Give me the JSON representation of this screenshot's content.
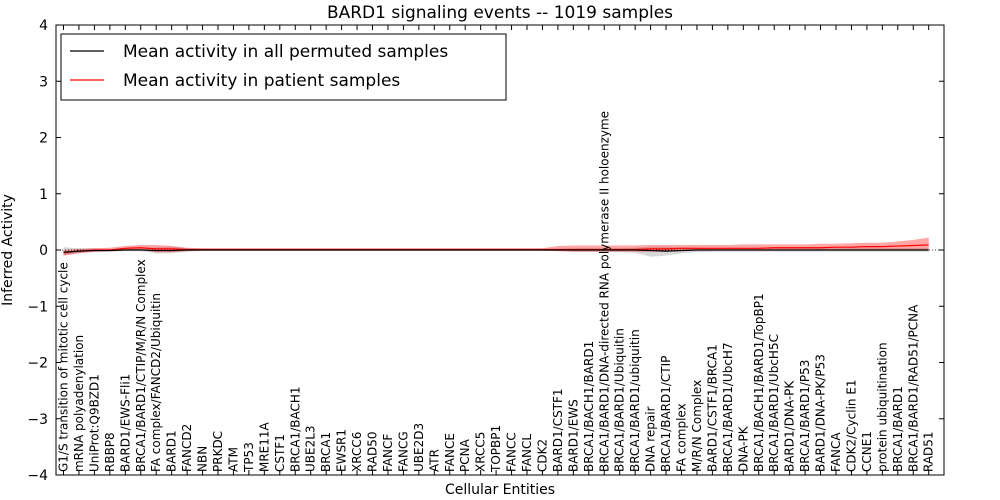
{
  "chart_data": {
    "type": "line",
    "title": "BARD1 signaling events -- 1019 samples",
    "xlabel": "Cellular Entities",
    "ylabel": "Inferred Activity",
    "ylim": [
      -4,
      4
    ],
    "yticks": [
      -4,
      -3,
      -2,
      -1,
      0,
      1,
      2,
      3,
      4
    ],
    "ytick_labels": [
      "−4",
      "−3",
      "−2",
      "−1",
      "0",
      "1",
      "2",
      "3",
      "4"
    ],
    "grid": false,
    "legend_position": "upper-left",
    "categories": [
      "G1/S transition of mitotic cell cycle",
      "mRNA polyadenylation",
      "UniProt:Q9BZD1",
      "RBBP8",
      "BARD1/EWS-Fli1",
      "BRCA1/BARD1/CTIP/M/R/N Complex",
      "FA complex/FANCD2/Ubiquitin",
      "BARD1",
      "FANCD2",
      "NBN",
      "PRKDC",
      "ATM",
      "TP53",
      "MRE11A",
      "CSTF1",
      "BRCA1/BACH1",
      "UBE2L3",
      "BRCA1",
      "EWSR1",
      "XRCC6",
      "RAD50",
      "FANCF",
      "FANCG",
      "UBE2D3",
      "ATR",
      "FANCE",
      "PCNA",
      "XRCC5",
      "TOPBP1",
      "FANCC",
      "FANCL",
      "CDK2",
      "BARD1/CSTF1",
      "BARD1/EWS",
      "BRCA1/BACH1/BARD1",
      "BRCA1/BARD1/DNA-directed RNA polymerase II holoenzyme",
      "BRCA1/BARD1/Ubiquitin",
      "BRCA1/BARD1/ubiquitin",
      "DNA repair",
      "BRCA1/BARD1/CTIP",
      "FA complex",
      "M/R/N Complex",
      "BARD1/CSTF1/BRCA1",
      "BRCA1/BARD1/UbcH7",
      "DNA-PK",
      "BRCA1/BACH1/BARD1/TopBP1",
      "BRCA1/BARD1/UbcH5C",
      "BARD1/DNA-PK",
      "BRCA1/BARD1/P53",
      "BARD1/DNA-PK/P53",
      "FANCA",
      "CDK2/Cyclin E1",
      "CCNE1",
      "protein ubiquitination",
      "BRCA1/BARD1",
      "BRCA1/BARD1/RAD51/PCNA",
      "RAD51"
    ],
    "series": [
      {
        "name": "Mean activity in all permuted samples",
        "color": "#000000",
        "values": [
          -0.04,
          -0.02,
          -0.01,
          -0.01,
          0.0,
          0.0,
          -0.01,
          -0.01,
          0.0,
          0.0,
          0.0,
          0.0,
          0.0,
          0.0,
          0.0,
          0.0,
          0.0,
          0.0,
          0.0,
          0.0,
          0.0,
          0.0,
          0.0,
          0.0,
          0.0,
          0.0,
          0.0,
          0.0,
          0.0,
          0.0,
          0.0,
          0.0,
          0.0,
          0.0,
          0.0,
          0.0,
          0.0,
          0.0,
          -0.01,
          -0.02,
          -0.01,
          0.0,
          0.0,
          0.0,
          0.0,
          0.0,
          0.0,
          0.0,
          0.0,
          0.0,
          0.0,
          0.0,
          0.0,
          0.0,
          0.0,
          0.0,
          0.0
        ],
        "band_low": [
          -0.1,
          -0.05,
          -0.04,
          -0.03,
          -0.02,
          -0.02,
          -0.06,
          -0.06,
          -0.03,
          -0.02,
          -0.02,
          -0.02,
          -0.02,
          -0.02,
          -0.02,
          -0.02,
          -0.02,
          -0.02,
          -0.02,
          -0.02,
          -0.02,
          -0.02,
          -0.02,
          -0.02,
          -0.02,
          -0.02,
          -0.02,
          -0.02,
          -0.02,
          -0.02,
          -0.02,
          -0.02,
          -0.02,
          -0.03,
          -0.03,
          -0.03,
          -0.04,
          -0.05,
          -0.12,
          -0.1,
          -0.06,
          -0.04,
          -0.03,
          -0.03,
          -0.03,
          -0.03,
          -0.03,
          -0.03,
          -0.03,
          -0.03,
          -0.03,
          -0.03,
          -0.03,
          -0.03,
          -0.03,
          -0.03,
          -0.03
        ],
        "band_high": [
          0.05,
          0.03,
          0.03,
          0.02,
          0.02,
          0.02,
          0.05,
          0.06,
          0.03,
          0.02,
          0.02,
          0.02,
          0.02,
          0.02,
          0.02,
          0.02,
          0.02,
          0.02,
          0.02,
          0.02,
          0.02,
          0.02,
          0.02,
          0.02,
          0.02,
          0.02,
          0.02,
          0.02,
          0.02,
          0.02,
          0.02,
          0.02,
          0.02,
          0.03,
          0.03,
          0.03,
          0.03,
          0.04,
          0.06,
          0.06,
          0.05,
          0.04,
          0.03,
          0.03,
          0.03,
          0.03,
          0.03,
          0.03,
          0.03,
          0.03,
          0.03,
          0.03,
          0.03,
          0.03,
          0.03,
          0.03,
          0.03
        ]
      },
      {
        "name": "Mean activity in patient samples",
        "color": "#ff0000",
        "values": [
          -0.05,
          -0.02,
          0.0,
          0.0,
          0.03,
          0.04,
          0.02,
          0.02,
          0.01,
          0.01,
          0.01,
          0.01,
          0.01,
          0.01,
          0.01,
          0.01,
          0.01,
          0.01,
          0.01,
          0.01,
          0.01,
          0.01,
          0.01,
          0.01,
          0.01,
          0.01,
          0.01,
          0.01,
          0.01,
          0.01,
          0.01,
          0.01,
          0.01,
          0.01,
          0.01,
          0.01,
          0.01,
          0.01,
          0.02,
          0.02,
          0.03,
          0.03,
          0.03,
          0.03,
          0.03,
          0.03,
          0.04,
          0.04,
          0.04,
          0.04,
          0.05,
          0.05,
          0.06,
          0.06,
          0.07,
          0.08,
          0.09
        ],
        "band_low": [
          -0.1,
          -0.06,
          -0.03,
          -0.02,
          0.0,
          0.0,
          -0.04,
          -0.04,
          -0.02,
          -0.01,
          -0.01,
          -0.01,
          -0.01,
          -0.01,
          -0.01,
          -0.01,
          -0.01,
          -0.01,
          -0.01,
          -0.01,
          -0.01,
          -0.01,
          -0.01,
          -0.01,
          -0.01,
          -0.01,
          -0.01,
          -0.01,
          -0.01,
          -0.01,
          -0.01,
          -0.01,
          -0.02,
          -0.03,
          -0.03,
          -0.03,
          -0.03,
          -0.03,
          -0.03,
          -0.03,
          -0.02,
          -0.01,
          -0.01,
          -0.01,
          -0.01,
          -0.01,
          -0.01,
          -0.01,
          -0.01,
          -0.01,
          0.0,
          0.0,
          0.0,
          0.0,
          0.0,
          0.0,
          0.0
        ],
        "band_high": [
          0.0,
          0.02,
          0.03,
          0.04,
          0.07,
          0.09,
          0.09,
          0.07,
          0.04,
          0.03,
          0.03,
          0.03,
          0.03,
          0.03,
          0.03,
          0.03,
          0.03,
          0.03,
          0.03,
          0.03,
          0.03,
          0.03,
          0.03,
          0.03,
          0.03,
          0.03,
          0.03,
          0.03,
          0.03,
          0.03,
          0.03,
          0.03,
          0.07,
          0.08,
          0.08,
          0.08,
          0.08,
          0.08,
          0.09,
          0.09,
          0.09,
          0.09,
          0.09,
          0.09,
          0.1,
          0.1,
          0.1,
          0.1,
          0.1,
          0.11,
          0.11,
          0.12,
          0.13,
          0.13,
          0.15,
          0.18,
          0.22
        ]
      }
    ]
  }
}
